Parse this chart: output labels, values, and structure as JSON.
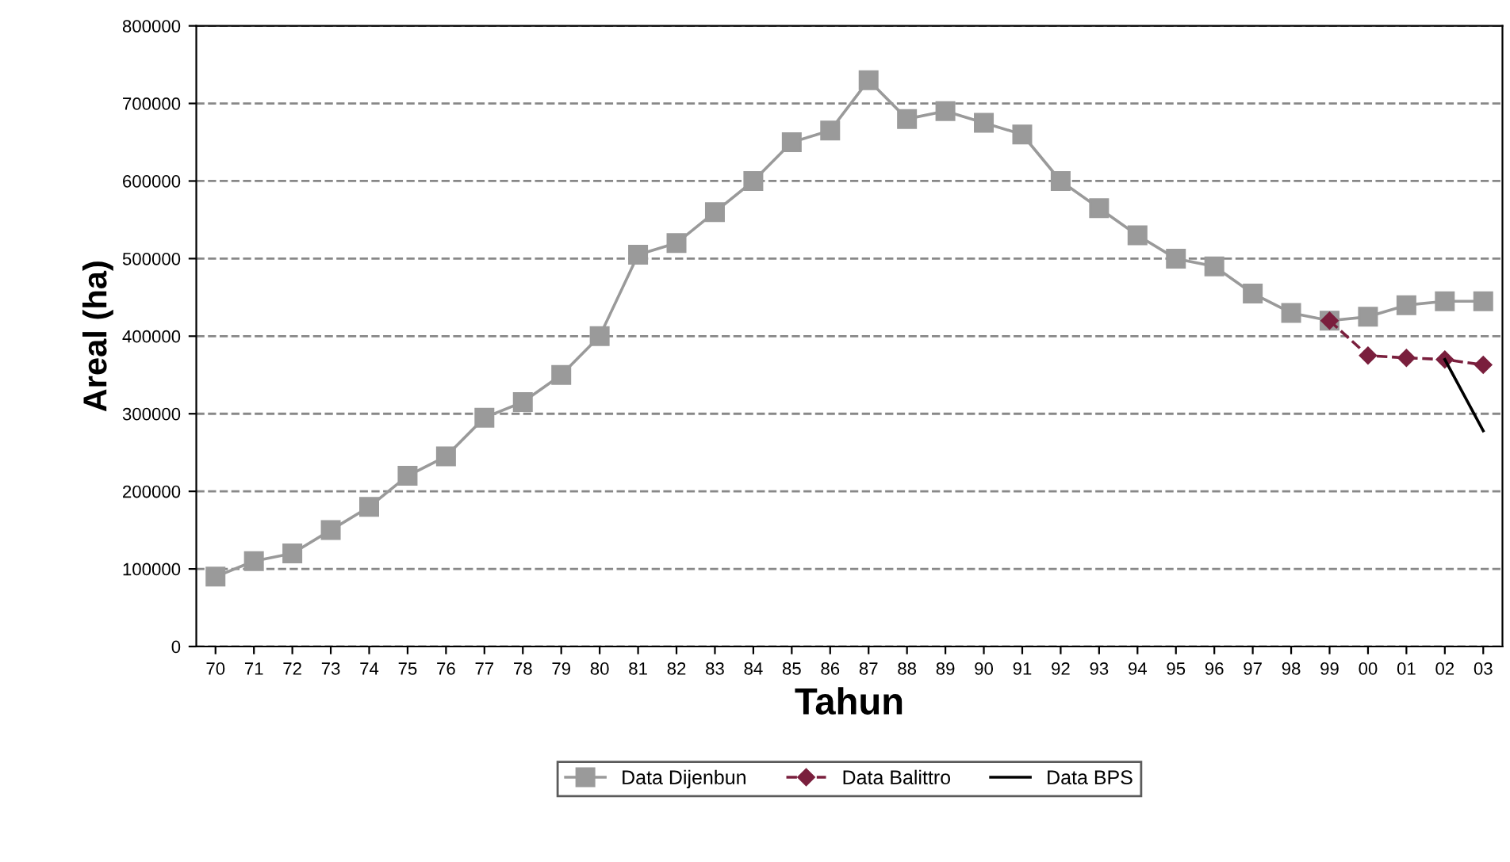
{
  "chart_data": {
    "type": "line",
    "xlabel": "Tahun",
    "ylabel": "Areal (ha)",
    "categories": [
      "70",
      "71",
      "72",
      "73",
      "74",
      "75",
      "76",
      "77",
      "78",
      "79",
      "80",
      "81",
      "82",
      "83",
      "84",
      "85",
      "86",
      "87",
      "88",
      "89",
      "90",
      "91",
      "92",
      "93",
      "94",
      "95",
      "96",
      "97",
      "98",
      "99",
      "00",
      "01",
      "02",
      "03"
    ],
    "series": [
      {
        "name": "Data Dijenbun",
        "color": "#9a9a9a",
        "marker": "square",
        "line_style": "solid",
        "values": [
          90000,
          110000,
          120000,
          150000,
          180000,
          220000,
          245000,
          295000,
          315000,
          350000,
          400000,
          505000,
          520000,
          560000,
          600000,
          650000,
          665000,
          730000,
          680000,
          690000,
          675000,
          660000,
          600000,
          565000,
          530000,
          500000,
          490000,
          455000,
          430000,
          420000,
          425000,
          440000,
          445000,
          445000
        ]
      },
      {
        "name": "Data Balittro",
        "color": "#7a1f3d",
        "marker": "diamond",
        "line_style": "dashed",
        "values": [
          null,
          null,
          null,
          null,
          null,
          null,
          null,
          null,
          null,
          null,
          null,
          null,
          null,
          null,
          null,
          null,
          null,
          null,
          null,
          null,
          null,
          null,
          null,
          null,
          null,
          null,
          null,
          null,
          null,
          420000,
          375000,
          372000,
          370000,
          363000
        ]
      },
      {
        "name": "Data BPS",
        "color": "#000000",
        "marker": "none",
        "line_style": "solid",
        "values": [
          null,
          null,
          null,
          null,
          null,
          null,
          null,
          null,
          null,
          null,
          null,
          null,
          null,
          null,
          null,
          null,
          null,
          null,
          null,
          null,
          null,
          null,
          null,
          null,
          null,
          null,
          null,
          null,
          null,
          null,
          null,
          null,
          370000,
          278000
        ]
      }
    ],
    "ylim": [
      0,
      800000
    ],
    "yticks": [
      0,
      100000,
      200000,
      300000,
      400000,
      500000,
      600000,
      700000,
      800000
    ],
    "grid": "y",
    "legend": "bottom"
  }
}
